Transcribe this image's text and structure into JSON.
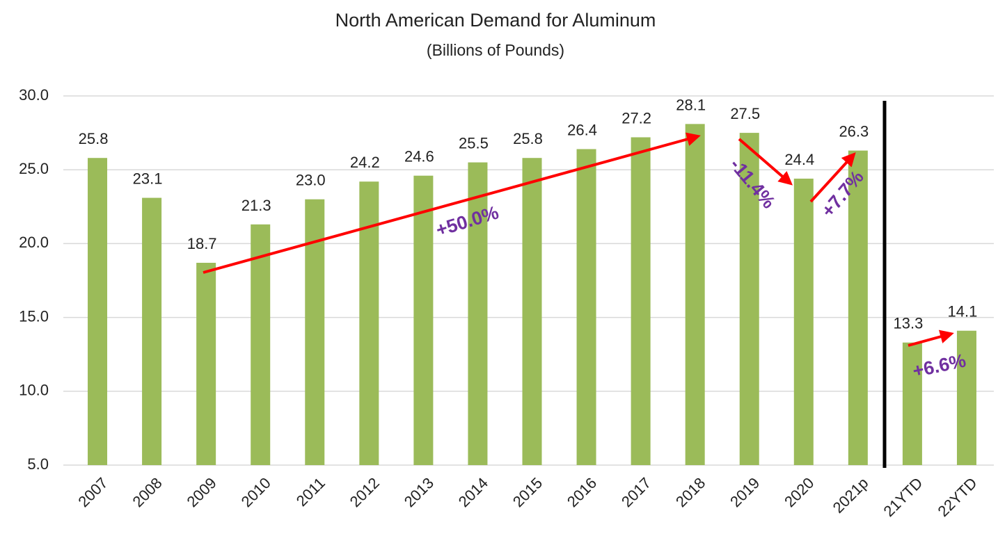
{
  "chart_data": {
    "type": "bar",
    "title": "North American Demand for Aluminum",
    "subtitle": "(Billions of Pounds)",
    "categories": [
      "2007",
      "2008",
      "2009",
      "2010",
      "2011",
      "2012",
      "2013",
      "2014",
      "2015",
      "2016",
      "2017",
      "2018",
      "2019",
      "2020",
      "2021p",
      "21YTD",
      "22YTD"
    ],
    "values": [
      25.8,
      23.1,
      18.7,
      21.3,
      23,
      24.2,
      24.6,
      25.5,
      25.8,
      26.4,
      27.2,
      28.1,
      27.5,
      24.4,
      26.3,
      13.3,
      14.1
    ],
    "value_labels": [
      "25.8",
      "23.1",
      "18.7",
      "21.3",
      "23.0",
      "24.2",
      "24.6",
      "25.5",
      "25.8",
      "26.4",
      "27.2",
      "28.1",
      "27.5",
      "24.4",
      "26.3",
      "13.3",
      "14.1"
    ],
    "color": "#9bbb59",
    "ylim": [
      5,
      30
    ],
    "yticks": [
      {
        "value": 5,
        "label": "5.0"
      },
      {
        "value": 10,
        "label": "10.0"
      },
      {
        "value": 15,
        "label": "15.0"
      },
      {
        "value": 20,
        "label": "20.0"
      },
      {
        "value": 25,
        "label": "25.0"
      },
      {
        "value": 30,
        "label": "30.0"
      }
    ],
    "grid": true,
    "annotations": [
      "+50.0%",
      "-11.4%",
      "+7.7%",
      "+6.6%"
    ]
  }
}
